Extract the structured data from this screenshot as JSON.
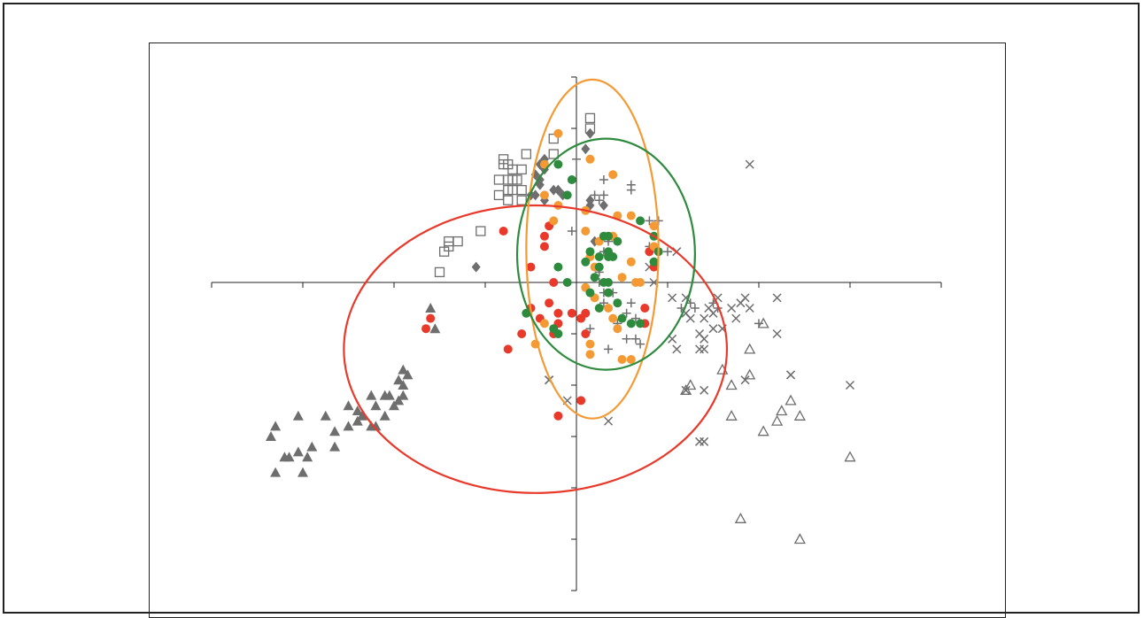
{
  "chart_data": {
    "type": "scatter",
    "title": "",
    "xlabel": "",
    "ylabel": "",
    "xlim": [
      -8,
      8
    ],
    "ylim": [
      -6,
      4
    ],
    "grid": false,
    "legend": "none",
    "axes_through_origin": true,
    "colors": {
      "red": "#e8392a",
      "orange": "#f39a35",
      "green": "#2e8b3e",
      "gray": "#6e6e6e"
    },
    "series": [
      {
        "marker": "filled-triangle",
        "color": "#6e6e6e",
        "points": [
          [
            -6.6,
            -2.8
          ],
          [
            -6.7,
            -3.0
          ],
          [
            -6.4,
            -3.4
          ],
          [
            -6.3,
            -3.4
          ],
          [
            -6.1,
            -3.3
          ],
          [
            -5.8,
            -3.2
          ],
          [
            -5.9,
            -3.4
          ],
          [
            -6.1,
            -2.6
          ],
          [
            -5.5,
            -2.6
          ],
          [
            -5.3,
            -3.2
          ],
          [
            -5.3,
            -2.9
          ],
          [
            -5.0,
            -2.8
          ],
          [
            -4.8,
            -2.7
          ],
          [
            -5.0,
            -2.4
          ],
          [
            -4.8,
            -2.5
          ],
          [
            -4.7,
            -2.6
          ],
          [
            -4.5,
            -2.8
          ],
          [
            -4.4,
            -2.8
          ],
          [
            -4.5,
            -2.2
          ],
          [
            -4.4,
            -2.4
          ],
          [
            -4.2,
            -2.6
          ],
          [
            -4.1,
            -2.2
          ],
          [
            -4.0,
            -2.4
          ],
          [
            -3.9,
            -2.3
          ],
          [
            -3.8,
            -2.2
          ],
          [
            -3.8,
            -2.0
          ],
          [
            -3.7,
            -1.8
          ],
          [
            -3.8,
            -1.7
          ],
          [
            -3.9,
            -1.9
          ],
          [
            -4.2,
            -2.2
          ],
          [
            -6.0,
            -3.7
          ],
          [
            -6.6,
            -3.7
          ],
          [
            -3.1,
            -0.9
          ],
          [
            -3.2,
            -0.5
          ]
        ]
      },
      {
        "marker": "open-square",
        "color": "#6e6e6e",
        "points": [
          [
            0.3,
            3.2
          ],
          [
            0.3,
            3.0
          ],
          [
            -0.5,
            2.8
          ],
          [
            -0.5,
            2.5
          ],
          [
            -1.1,
            2.5
          ],
          [
            -1.6,
            2.3
          ],
          [
            -1.6,
            2.4
          ],
          [
            -1.5,
            2.3
          ],
          [
            -1.4,
            2.2
          ],
          [
            -1.3,
            2.0
          ],
          [
            -1.5,
            2.0
          ],
          [
            -1.7,
            2.0
          ],
          [
            -1.2,
            2.2
          ],
          [
            -1.4,
            2.0
          ],
          [
            -1.7,
            1.7
          ],
          [
            -1.5,
            1.8
          ],
          [
            -1.4,
            1.8
          ],
          [
            -1.2,
            1.8
          ],
          [
            -1.2,
            1.6
          ],
          [
            -1.5,
            1.6
          ],
          [
            -2.1,
            1.0
          ],
          [
            -2.6,
            0.8
          ],
          [
            -2.8,
            0.8
          ],
          [
            -2.8,
            0.7
          ],
          [
            -2.9,
            0.6
          ],
          [
            -3.0,
            0.2
          ]
        ]
      },
      {
        "marker": "filled-diamond",
        "color": "#6e6e6e",
        "points": [
          [
            0.3,
            2.9
          ],
          [
            0.2,
            2.6
          ],
          [
            -0.7,
            2.4
          ],
          [
            -0.8,
            2.3
          ],
          [
            -0.7,
            2.2
          ],
          [
            -0.8,
            2.0
          ],
          [
            -0.9,
            2.1
          ],
          [
            -0.8,
            1.9
          ],
          [
            -0.5,
            1.8
          ],
          [
            -0.4,
            1.8
          ],
          [
            -0.9,
            1.7
          ],
          [
            -0.7,
            1.6
          ],
          [
            -0.3,
            1.7
          ],
          [
            0.3,
            1.6
          ],
          [
            0.6,
            1.5
          ],
          [
            0.3,
            1.5
          ],
          [
            -2.2,
            0.3
          ],
          [
            0.4,
            0.8
          ],
          [
            -1.0,
            1.7
          ]
        ]
      },
      {
        "marker": "plus",
        "color": "#6e6e6e",
        "points": [
          [
            0.0,
            2.4
          ],
          [
            0.6,
            2.0
          ],
          [
            0.4,
            1.7
          ],
          [
            0.5,
            1.6
          ],
          [
            0.6,
            1.7
          ],
          [
            1.2,
            1.8
          ],
          [
            1.2,
            1.9
          ],
          [
            1.8,
            1.2
          ],
          [
            1.6,
            1.2
          ],
          [
            1.6,
            0.7
          ],
          [
            2.0,
            0.6
          ],
          [
            -0.1,
            1.0
          ],
          [
            0.6,
            0.6
          ],
          [
            0.7,
            0.8
          ],
          [
            1.6,
            0.6
          ],
          [
            1.7,
            0.4
          ],
          [
            0.5,
            0.2
          ],
          [
            0.5,
            0.0
          ],
          [
            0.6,
            -0.2
          ],
          [
            0.6,
            -0.4
          ],
          [
            0.8,
            -0.2
          ],
          [
            1.2,
            -0.4
          ],
          [
            1.1,
            -0.6
          ],
          [
            0.9,
            -0.8
          ],
          [
            1.3,
            -0.7
          ],
          [
            0.3,
            -0.9
          ],
          [
            1.1,
            -1.1
          ],
          [
            0.7,
            -1.3
          ],
          [
            1.3,
            -1.1
          ],
          [
            1.4,
            -1.2
          ],
          [
            2.3,
            -0.5
          ],
          [
            2.5,
            -0.4
          ],
          [
            2.6,
            -0.5
          ],
          [
            4.0,
            -0.8
          ],
          [
            3.0,
            -0.4
          ],
          [
            3.1,
            -0.5
          ]
        ]
      },
      {
        "marker": "cross",
        "color": "#6e6e6e",
        "points": [
          [
            3.8,
            2.3
          ],
          [
            2.2,
            0.6
          ],
          [
            1.6,
            0.3
          ],
          [
            1.7,
            0.0
          ],
          [
            2.1,
            -0.3
          ],
          [
            2.4,
            -0.3
          ],
          [
            2.4,
            -0.6
          ],
          [
            2.5,
            -0.7
          ],
          [
            2.9,
            -0.5
          ],
          [
            2.8,
            -0.7
          ],
          [
            3.1,
            -0.3
          ],
          [
            3.0,
            -0.6
          ],
          [
            3.0,
            -0.9
          ],
          [
            3.2,
            -0.9
          ],
          [
            3.4,
            -0.5
          ],
          [
            3.6,
            -0.4
          ],
          [
            3.7,
            -0.3
          ],
          [
            3.5,
            -0.7
          ],
          [
            3.8,
            -0.5
          ],
          [
            4.4,
            -0.3
          ],
          [
            2.8,
            -1.1
          ],
          [
            2.1,
            -1.1
          ],
          [
            2.2,
            -1.3
          ],
          [
            2.7,
            -1.3
          ],
          [
            2.7,
            -1.0
          ],
          [
            2.8,
            -1.3
          ],
          [
            0.7,
            -2.7
          ],
          [
            2.4,
            -2.1
          ],
          [
            2.8,
            -2.1
          ],
          [
            4.4,
            -1.0
          ],
          [
            3.7,
            -1.9
          ],
          [
            4.7,
            -1.8
          ],
          [
            4.7,
            -1.8
          ],
          [
            6.0,
            -2.0
          ],
          [
            2.8,
            -3.1
          ],
          [
            -0.6,
            -1.9
          ],
          [
            -0.6,
            -1.9
          ],
          [
            -0.2,
            -2.3
          ],
          [
            2.7,
            -3.1
          ]
        ]
      },
      {
        "marker": "open-triangle",
        "color": "#6e6e6e",
        "points": [
          [
            4.1,
            -0.8
          ],
          [
            3.8,
            -1.3
          ],
          [
            3.2,
            -1.7
          ],
          [
            3.8,
            -1.8
          ],
          [
            3.4,
            -2.0
          ],
          [
            2.5,
            -2.0
          ],
          [
            2.4,
            -2.1
          ],
          [
            4.7,
            -2.3
          ],
          [
            4.5,
            -2.5
          ],
          [
            4.9,
            -2.6
          ],
          [
            3.4,
            -2.6
          ],
          [
            4.4,
            -2.7
          ],
          [
            4.1,
            -2.9
          ],
          [
            6.0,
            -3.4
          ],
          [
            3.6,
            -4.6
          ],
          [
            4.9,
            -5.0
          ]
        ]
      },
      {
        "marker": "filled-circle",
        "color": "#e8392a",
        "points": [
          [
            -1.6,
            1.0
          ],
          [
            -0.6,
            1.1
          ],
          [
            -0.7,
            0.9
          ],
          [
            -0.7,
            0.7
          ],
          [
            -1.0,
            0.3
          ],
          [
            -0.5,
            0.0
          ],
          [
            -0.6,
            -0.4
          ],
          [
            -1.0,
            -0.5
          ],
          [
            -0.4,
            -0.6
          ],
          [
            -0.8,
            -0.7
          ],
          [
            -0.4,
            -0.8
          ],
          [
            0.1,
            -0.7
          ],
          [
            -0.5,
            -1.0
          ],
          [
            -1.2,
            -1.0
          ],
          [
            -1.5,
            -1.3
          ],
          [
            0.2,
            -0.6
          ],
          [
            -3.2,
            -0.7
          ],
          [
            -3.3,
            -0.9
          ],
          [
            1.5,
            -0.5
          ],
          [
            1.5,
            -0.8
          ],
          [
            0.1,
            -2.3
          ],
          [
            -0.4,
            -2.6
          ],
          [
            1.7,
            0.3
          ],
          [
            1.6,
            0.6
          ],
          [
            -0.1,
            -0.6
          ],
          [
            0.2,
            -1.0
          ]
        ]
      },
      {
        "marker": "filled-circle",
        "color": "#f39a35",
        "points": [
          [
            -0.4,
            2.9
          ],
          [
            0.3,
            2.4
          ],
          [
            -0.7,
            2.3
          ],
          [
            0.8,
            2.1
          ],
          [
            -0.7,
            1.7
          ],
          [
            -0.4,
            1.5
          ],
          [
            0.2,
            1.4
          ],
          [
            0.9,
            1.3
          ],
          [
            1.2,
            1.3
          ],
          [
            1.7,
            1.1
          ],
          [
            -0.5,
            1.2
          ],
          [
            0.2,
            1.0
          ],
          [
            0.8,
            0.9
          ],
          [
            0.5,
            0.8
          ],
          [
            1.7,
            0.7
          ],
          [
            0.3,
            0.5
          ],
          [
            0.4,
            0.3
          ],
          [
            1.0,
            0.1
          ],
          [
            1.3,
            0.0
          ],
          [
            1.4,
            0.0
          ],
          [
            0.4,
            -0.3
          ],
          [
            0.7,
            -0.5
          ],
          [
            0.8,
            -0.7
          ],
          [
            0.9,
            -0.9
          ],
          [
            0.3,
            -1.2
          ],
          [
            0.3,
            -1.4
          ],
          [
            1.0,
            -1.5
          ],
          [
            1.2,
            -1.5
          ],
          [
            0.2,
            -0.1
          ],
          [
            -0.7,
            -0.8
          ],
          [
            -0.9,
            -1.2
          ],
          [
            1.2,
            0.4
          ]
        ]
      },
      {
        "marker": "filled-circle",
        "color": "#2e8b3e",
        "points": [
          [
            -0.4,
            2.3
          ],
          [
            -0.1,
            2.0
          ],
          [
            -0.2,
            1.7
          ],
          [
            1.4,
            1.2
          ],
          [
            1.7,
            0.9
          ],
          [
            0.6,
            0.9
          ],
          [
            0.7,
            0.6
          ],
          [
            0.9,
            0.8
          ],
          [
            0.3,
            0.6
          ],
          [
            0.5,
            0.5
          ],
          [
            0.7,
            0.5
          ],
          [
            0.8,
            0.5
          ],
          [
            0.2,
            0.4
          ],
          [
            0.5,
            0.3
          ],
          [
            0.6,
            0.0
          ],
          [
            0.7,
            0.0
          ],
          [
            0.4,
            0.1
          ],
          [
            0.7,
            -0.2
          ],
          [
            0.5,
            -0.5
          ],
          [
            0.3,
            -0.2
          ],
          [
            0.9,
            -0.4
          ],
          [
            1.0,
            -0.7
          ],
          [
            1.2,
            -0.8
          ],
          [
            1.4,
            -0.8
          ],
          [
            -1.1,
            -0.6
          ],
          [
            -0.5,
            -0.9
          ],
          [
            -0.4,
            0.3
          ],
          [
            -0.2,
            0.0
          ],
          [
            -0.4,
            -1.0
          ],
          [
            1.8,
            0.6
          ],
          [
            1.7,
            0.4
          ],
          [
            0.7,
            0.9
          ]
        ]
      }
    ],
    "ellipses": [
      {
        "color": "#e8392a",
        "center": [
          -0.9,
          -1.3
        ],
        "rx": 4.2,
        "ry": 2.8
      },
      {
        "color": "#f39a35",
        "center": [
          0.35,
          0.65
        ],
        "rx": 1.45,
        "ry": 3.3
      },
      {
        "color": "#2e8b3e",
        "center": [
          0.65,
          0.55
        ],
        "rx": 1.95,
        "ry": 2.25
      }
    ],
    "x_ticks": [
      -8,
      -6,
      -4,
      -2,
      0,
      2,
      4,
      6,
      8
    ],
    "y_ticks": [
      -6,
      -5,
      -4,
      -3,
      -2,
      -1,
      1,
      2,
      3,
      4
    ]
  }
}
